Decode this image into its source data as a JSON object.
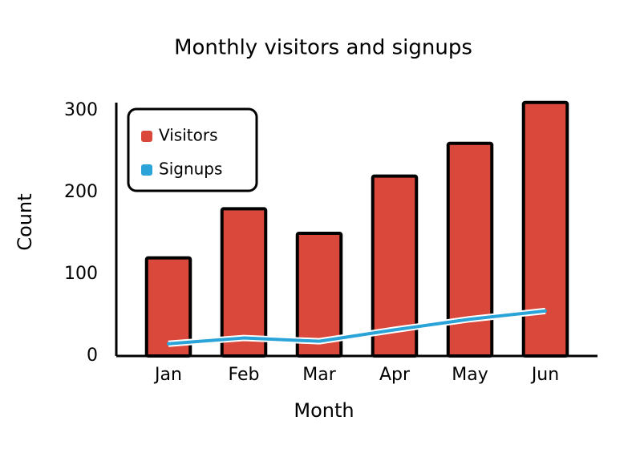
{
  "chart_data": {
    "type": "bar",
    "title": "Monthly visitors and signups",
    "x_label": "Month",
    "y_label": "Count",
    "categories": [
      "Jan",
      "Feb",
      "Mar",
      "Apr",
      "May",
      "Jun"
    ],
    "series": [
      {
        "name": "Visitors",
        "type": "bar",
        "color": "#d9483b",
        "values": [
          120,
          180,
          150,
          220,
          260,
          310
        ]
      },
      {
        "name": "Signups",
        "type": "line",
        "color": "#2aa3d8",
        "values": [
          15,
          22,
          18,
          32,
          45,
          55
        ]
      }
    ],
    "ylim": [
      0,
      315
    ],
    "yticks": [
      0,
      100,
      200,
      300
    ],
    "grid": false,
    "legend": "upper left"
  }
}
